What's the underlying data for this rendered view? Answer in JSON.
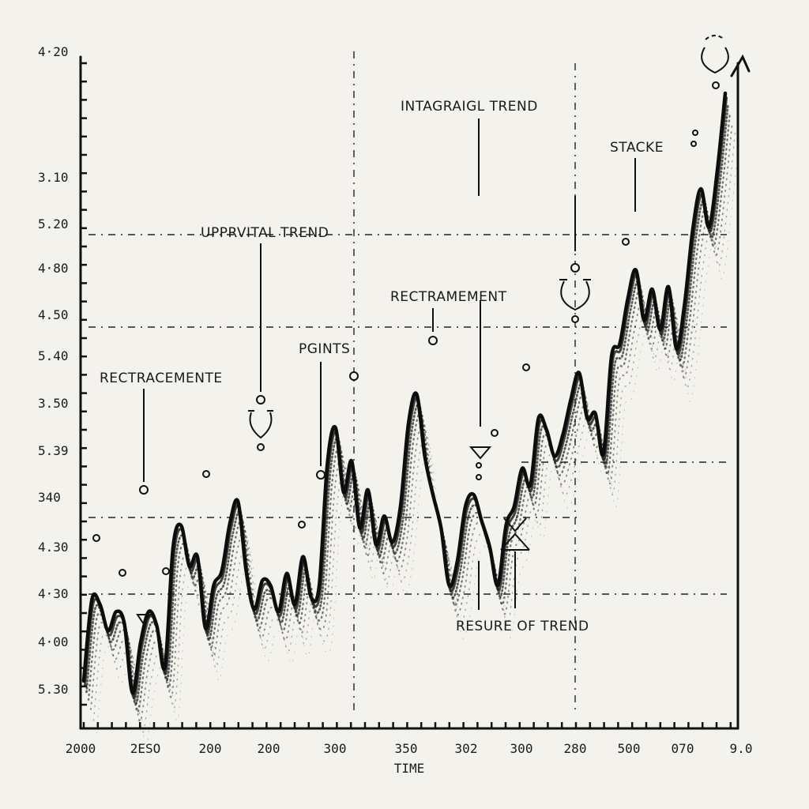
{
  "chart_data": {
    "type": "line",
    "title": "",
    "xlabel": "TIME",
    "ylabel": "",
    "x_tick_labels": [
      "2000",
      "2ESO",
      "200",
      "200",
      "300",
      "350",
      "302",
      "300",
      "280",
      "500",
      "070",
      "9.0"
    ],
    "y_tick_labels": [
      "4·20",
      "3.10",
      "5.20",
      "4·80",
      "4.50",
      "5.40",
      "3.50",
      "5.39",
      "340",
      "4.30",
      "4·30",
      "4·00",
      "5.30"
    ],
    "grid": false,
    "series": [
      {
        "values": [
          3.0,
          6.4,
          6.2,
          5.1,
          5.9,
          5.4,
          2.5,
          4.6,
          5.9,
          5.3,
          3.6,
          8.6,
          9.5,
          7.8,
          8.2,
          5.2,
          7.0,
          7.6,
          9.6,
          10.5,
          7.6,
          6.0,
          7.2,
          7.0,
          5.9,
          7.5,
          6.2,
          8.2,
          6.5,
          7.0,
          12.1,
          13.6,
          10.9,
          12.2,
          9.4,
          11.0,
          8.7,
          9.9,
          8.8,
          10.3,
          13.8,
          15.0,
          12.4,
          10.8,
          9.4,
          7.0,
          8.0,
          10.3,
          10.8,
          9.7,
          8.6,
          7.0,
          9.5,
          10.3,
          11.9,
          11.2,
          14.0,
          13.5,
          12.4,
          13.3,
          14.8,
          15.9,
          14.0,
          14.2,
          12.5,
          16.6,
          17.1,
          19.0,
          20.2,
          18.1,
          19.4,
          17.7,
          19.5,
          16.9,
          18.8,
          21.9,
          23.6,
          22.0,
          24.3,
          27.6
        ]
      }
    ],
    "annotations": [
      {
        "key": "a1",
        "text": "RECTRACEMENTE"
      },
      {
        "key": "a2",
        "text": "UPPRVITAL TREND"
      },
      {
        "key": "a3",
        "text": "PGINTS"
      },
      {
        "key": "a4",
        "text": "RECTRAMEMENT"
      },
      {
        "key": "a5",
        "text": "INTAGRAIGL TREND"
      },
      {
        "key": "a6",
        "text": "RESURE OF TREND"
      },
      {
        "key": "a7",
        "text": "STACKE"
      }
    ]
  }
}
